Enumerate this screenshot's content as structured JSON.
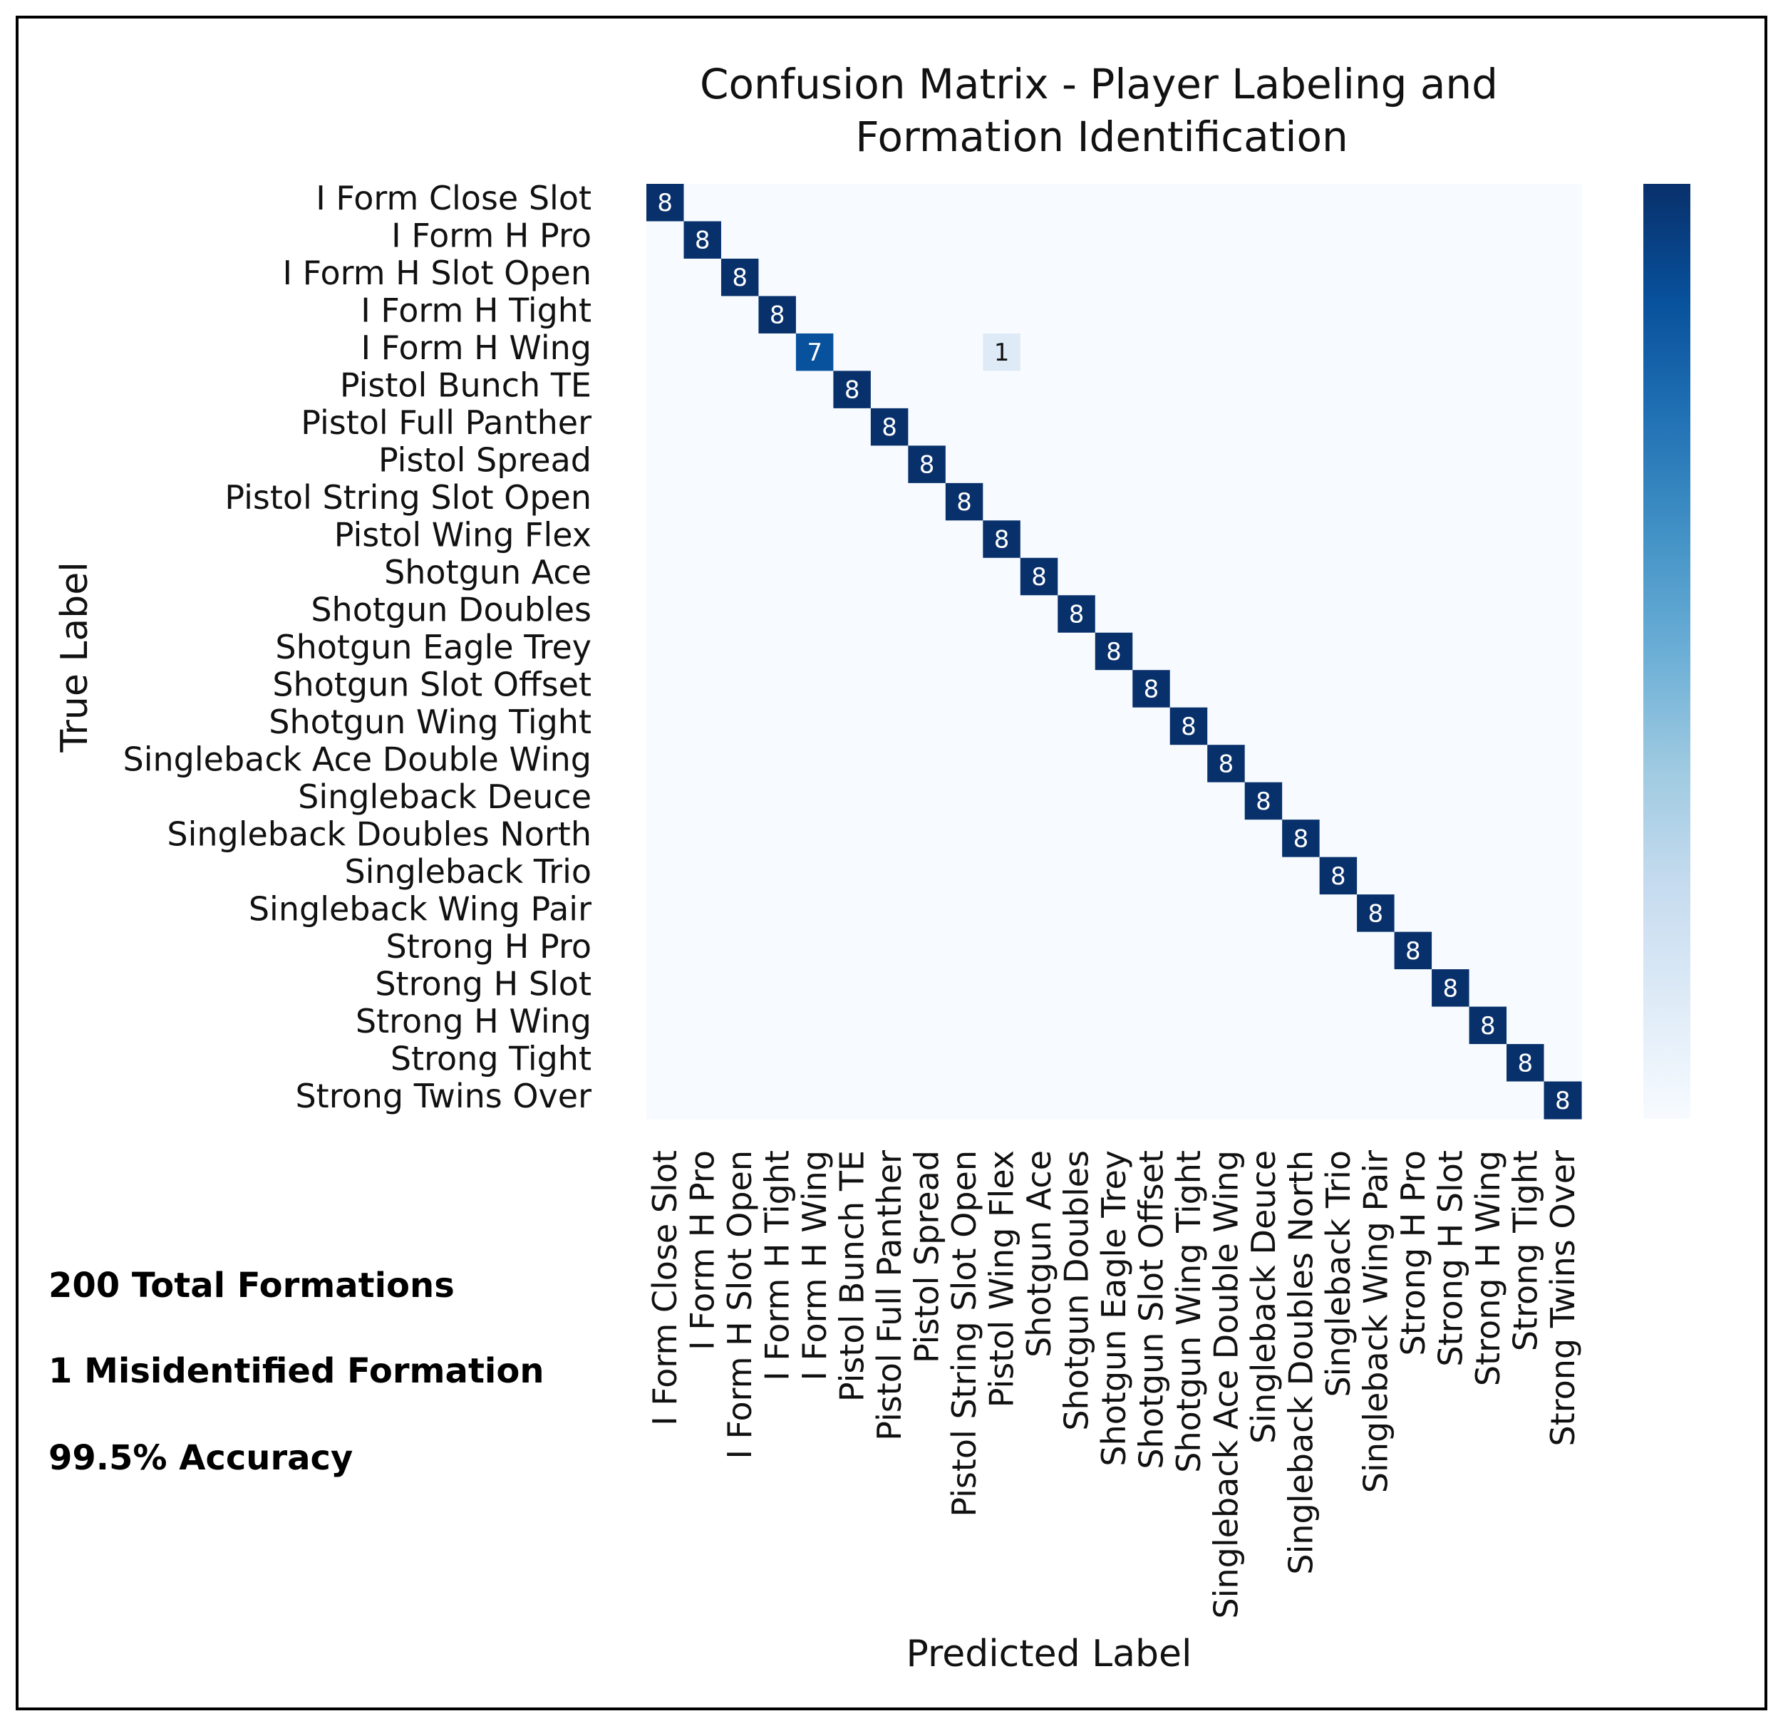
{
  "chart_data": {
    "type": "heatmap",
    "title": "Confusion Matrix - Player Labeling and Formation Identification",
    "title_lines": [
      "Confusion Matrix - Player Labeling and",
      "Formation Identification"
    ],
    "xlabel": "Predicted Label",
    "ylabel": "True Label",
    "labels": [
      "I Form Close Slot",
      "I Form H Pro",
      "I Form H Slot Open",
      "I Form H Tight",
      "I Form H Wing",
      "Pistol Bunch TE",
      "Pistol Full Panther",
      "Pistol Spread",
      "Pistol String Slot Open",
      "Pistol Wing Flex",
      "Shotgun Ace",
      "Shotgun Doubles",
      "Shotgun Eagle Trey",
      "Shotgun Slot Offset",
      "Shotgun Wing Tight",
      "Singleback Ace Double Wing",
      "Singleback Deuce",
      "Singleback Doubles North",
      "Singleback Trio",
      "Singleback Wing Pair",
      "Strong H Pro",
      "Strong H Slot",
      "Strong H Wing",
      "Strong Tight",
      "Strong Twins Over"
    ],
    "diagonal_values": [
      8,
      8,
      8,
      8,
      7,
      8,
      8,
      8,
      8,
      8,
      8,
      8,
      8,
      8,
      8,
      8,
      8,
      8,
      8,
      8,
      8,
      8,
      8,
      8,
      8
    ],
    "off_diagonal": [
      {
        "true": "I Form H Wing",
        "predicted": "Pistol Wing Flex",
        "value": 1
      }
    ],
    "colormap": "Blues",
    "vmin": 0,
    "vmax": 8,
    "colors": {
      "low": "#f7fbff",
      "mid": "#6baed6",
      "high": "#08306b"
    }
  },
  "stats": {
    "total": "200 Total Formations",
    "misidentified": "1 Misidentified Formation",
    "accuracy": "99.5% Accuracy"
  }
}
